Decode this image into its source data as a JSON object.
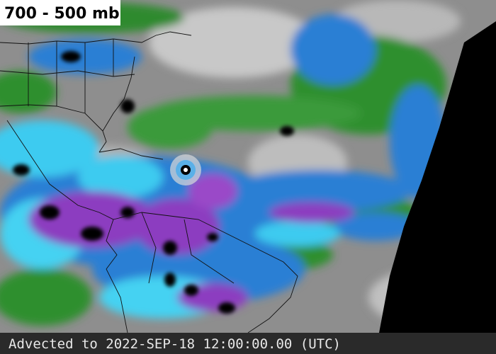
{
  "header": {
    "title": "700 - 500 mb"
  },
  "footer": {
    "text": "Advected to 2022-SEP-18 12:00:00.00 (UTC)"
  }
}
